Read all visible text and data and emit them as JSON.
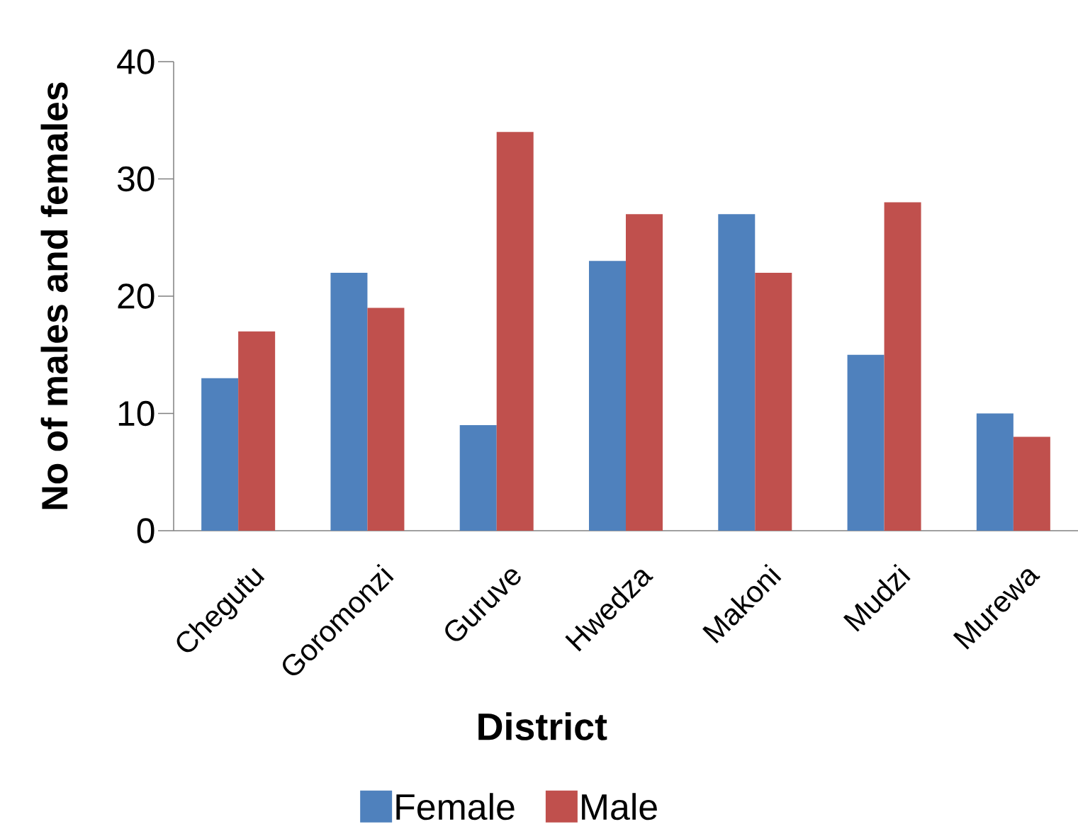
{
  "chart_data": {
    "type": "bar",
    "xlabel": "District",
    "ylabel": "No of males and females",
    "categories": [
      "Chegutu",
      "Goromonzi",
      "Guruve",
      "Hwedza",
      "Makoni",
      "Mudzi",
      "Murewa"
    ],
    "series": [
      {
        "name": "Female",
        "color": "#4f81bd",
        "values": [
          13,
          22,
          9,
          23,
          27,
          15,
          10
        ]
      },
      {
        "name": "Male",
        "color": "#c0504d",
        "values": [
          17,
          19,
          34,
          27,
          22,
          28,
          8
        ]
      }
    ],
    "ylim": [
      0,
      40
    ],
    "yticks": [
      0,
      10,
      20,
      30,
      40
    ],
    "legend": "bottom"
  }
}
